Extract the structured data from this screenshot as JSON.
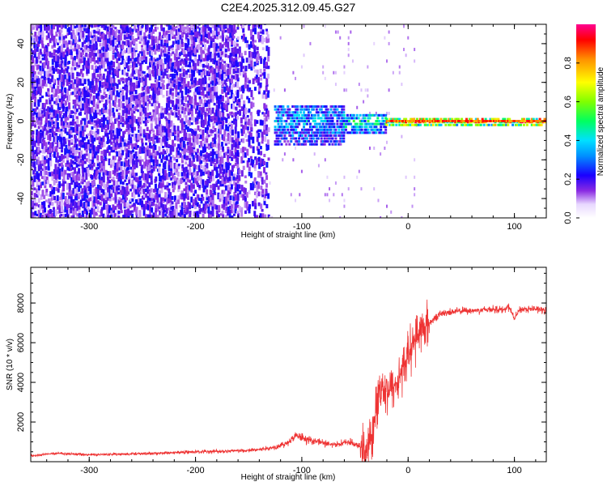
{
  "figure_title": "C2E4.2025.312.09.45.G27",
  "chart_data": [
    {
      "type": "heatmap",
      "title": "C2E4.2025.312.09.45.G27",
      "xlabel": "Height of straight line (km)",
      "ylabel": "Frequency (Hz)",
      "xlim": [
        -355,
        130
      ],
      "ylim": [
        -50,
        50
      ],
      "x_ticks": [
        -300,
        -200,
        -100,
        0,
        100
      ],
      "x_tick_labels": [
        "-300",
        "-200",
        "-100",
        "0",
        "100"
      ],
      "y_ticks": [
        -40,
        -20,
        0,
        20,
        40
      ],
      "y_tick_labels": [
        "-40",
        "-20",
        "0",
        "20",
        "40"
      ],
      "colorbar": {
        "label": "Normalized spectral amplitude",
        "range": [
          0,
          1
        ],
        "ticks": [
          0.0,
          0.2,
          0.4,
          0.6,
          0.8
        ],
        "tick_labels": [
          "0.0",
          "0.2",
          "0.4",
          "0.6",
          "0.8"
        ]
      },
      "regions": [
        {
          "x_range": [
            -355,
            -150
          ],
          "freq_range": [
            -50,
            50
          ],
          "amplitude": 0.15,
          "description_level": "scattered low"
        },
        {
          "x_range": [
            -150,
            -125
          ],
          "freq_range": [
            -50,
            50
          ],
          "amplitude": 0.1
        },
        {
          "x_range": [
            -125,
            -60
          ],
          "freq_range": [
            -12,
            8
          ],
          "amplitude": 0.35
        },
        {
          "x_range": [
            -60,
            -20
          ],
          "freq_range": [
            -6,
            4
          ],
          "amplitude": 0.45
        },
        {
          "x_range": [
            -20,
            130
          ],
          "freq_range": [
            -2,
            2
          ],
          "amplitude": 0.8
        }
      ],
      "grid": false
    },
    {
      "type": "line",
      "xlabel": "Height of straight line (km)",
      "ylabel": "SNR (10 * v/v)",
      "xlim": [
        -355,
        130
      ],
      "ylim": [
        0,
        9800
      ],
      "x_ticks": [
        -300,
        -200,
        -100,
        0,
        100
      ],
      "x_tick_labels": [
        "-300",
        "-200",
        "-100",
        "0",
        "100"
      ],
      "y_ticks": [
        2000,
        4000,
        6000,
        8000
      ],
      "y_tick_labels": [
        "2000",
        "4000",
        "6000",
        "8000"
      ],
      "color": "#ee3333",
      "series": [
        {
          "x": [
            -355,
            -330,
            -300,
            -270,
            -240,
            -210,
            -180,
            -150,
            -130,
            -115,
            -105,
            -95,
            -85,
            -75,
            -65,
            -55,
            -45,
            -38,
            -32,
            -28,
            -24,
            -20,
            -15,
            -10,
            -5,
            0,
            5,
            10,
            20,
            30,
            40,
            50,
            60,
            70,
            80,
            90,
            95,
            100,
            105,
            110,
            115,
            120,
            130
          ],
          "y": [
            300,
            420,
            350,
            380,
            420,
            480,
            520,
            560,
            680,
            900,
            1300,
            1100,
            1050,
            850,
            900,
            1000,
            750,
            500,
            1800,
            3500,
            3900,
            3600,
            3700,
            4000,
            4700,
            5400,
            6000,
            6500,
            7000,
            7450,
            7550,
            7600,
            7620,
            7650,
            7700,
            7650,
            7800,
            7200,
            7650,
            7700,
            7700,
            7700,
            7600
          ]
        }
      ],
      "grid": false
    }
  ]
}
